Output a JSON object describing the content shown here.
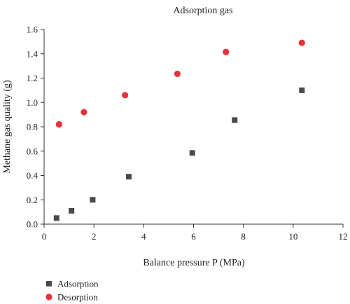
{
  "chart_data": {
    "type": "scatter",
    "title": "Adsorption gas",
    "xlabel": "Balance pressure P (MPa)",
    "ylabel": "Methane gas quality (g)",
    "xlim": [
      0,
      12
    ],
    "ylim": [
      0,
      1.6
    ],
    "xticks": [
      "0",
      "2",
      "4",
      "6",
      "8",
      "10",
      "12"
    ],
    "yticks": [
      "0.0",
      "0.2",
      "0.4",
      "0.6",
      "0.8",
      "1.0",
      "1.2",
      "1.4",
      "1.6"
    ],
    "grid": false,
    "legend_position": "bottom-left",
    "series": [
      {
        "name": "Adsorption",
        "marker": "square",
        "color": "#4a4a4a",
        "points": [
          {
            "x": 0.5,
            "y": 0.05
          },
          {
            "x": 1.1,
            "y": 0.11
          },
          {
            "x": 1.95,
            "y": 0.2
          },
          {
            "x": 3.4,
            "y": 0.39
          },
          {
            "x": 5.95,
            "y": 0.585
          },
          {
            "x": 7.65,
            "y": 0.855
          },
          {
            "x": 10.35,
            "y": 1.1
          }
        ]
      },
      {
        "name": "Desorption",
        "marker": "circle",
        "color": "#e8323c",
        "points": [
          {
            "x": 0.6,
            "y": 0.82
          },
          {
            "x": 1.6,
            "y": 0.92
          },
          {
            "x": 3.25,
            "y": 1.06
          },
          {
            "x": 5.35,
            "y": 1.235
          },
          {
            "x": 7.3,
            "y": 1.415
          },
          {
            "x": 10.35,
            "y": 1.49
          }
        ]
      }
    ]
  }
}
